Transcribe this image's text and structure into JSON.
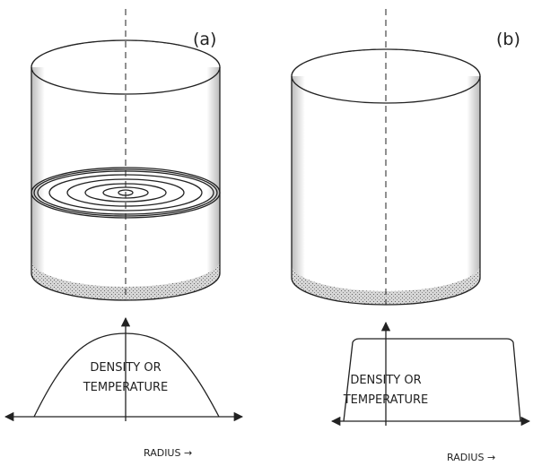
{
  "panels": [
    {
      "label": "(a)",
      "profile_label": [
        "DENSITY OR",
        "TEMPERATURE"
      ],
      "axis_label": "RADIUS →"
    },
    {
      "label": "(b)",
      "profile_label": [
        "DENSITY OR",
        "TEMPERATURE"
      ],
      "axis_label": "RADIUS →"
    }
  ]
}
